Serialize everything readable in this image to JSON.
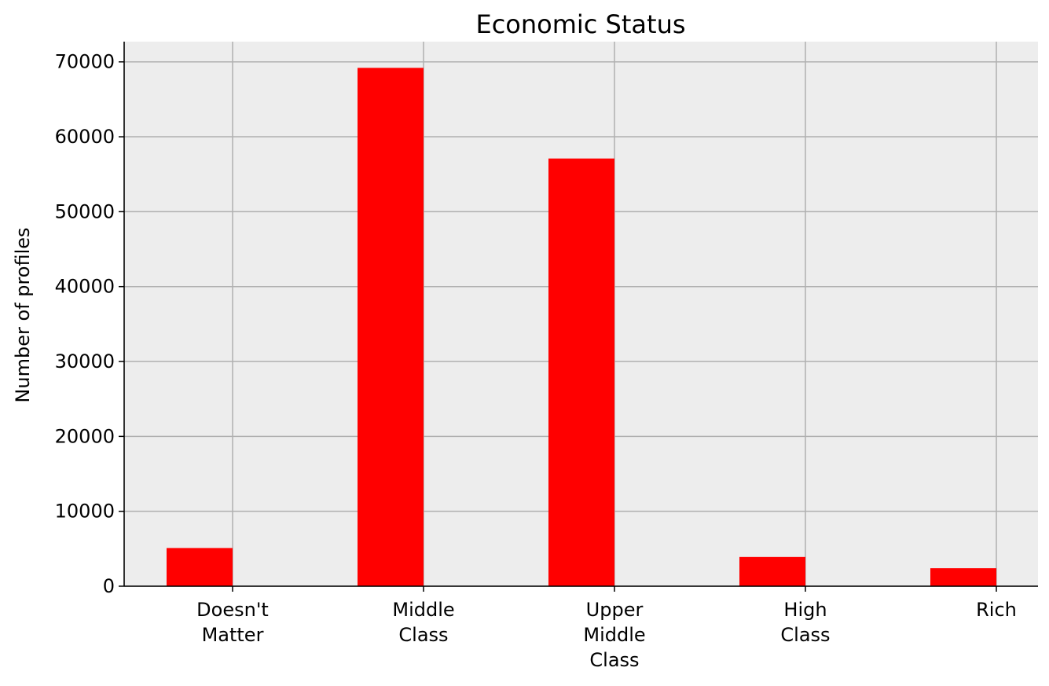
{
  "chart_data": {
    "type": "bar",
    "title": "Economic Status",
    "xlabel": "",
    "ylabel": "Number of profiles",
    "categories": [
      [
        "Doesn't",
        "Matter"
      ],
      [
        "Middle",
        "Class"
      ],
      [
        "Upper",
        "Middle",
        "Class"
      ],
      [
        "High",
        "Class"
      ],
      [
        "Rich"
      ]
    ],
    "values": [
      5100,
      69200,
      57100,
      3900,
      2400
    ],
    "ylim": [
      0,
      72700
    ],
    "yticks": [
      0,
      10000,
      20000,
      30000,
      40000,
      50000,
      60000,
      70000
    ],
    "grid": true,
    "legend": "none",
    "colors": {
      "bar": "#ff0000",
      "plot_background": "#ededed",
      "grid": "#b0b0b0",
      "axis": "#000000"
    }
  }
}
